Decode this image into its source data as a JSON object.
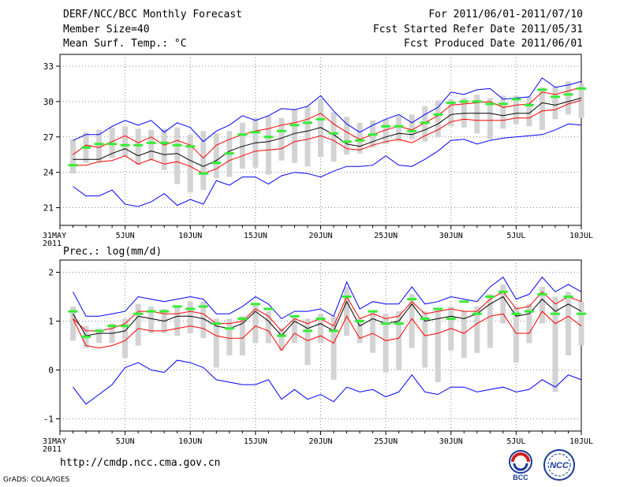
{
  "header": {
    "title": "DERF/NCC/BCC Monthly Forecast",
    "member_size": "Member Size=40",
    "variable1": "Mean Surf. Temp.: °C",
    "period": "For 2011/06/01-2011/07/10",
    "started": "Fcst Started Refer Date 2011/05/31",
    "produced": "Fcst Produced Date 2011/06/01"
  },
  "footer": {
    "url": "http://cmdp.ncc.cma.gov.cn",
    "grads": "GrADS: COLA/IGES"
  },
  "logos": {
    "bcc": "BCC",
    "ncc": "NCC"
  },
  "colors": {
    "blue": "#0000ff",
    "red": "#ff0000",
    "black": "#000000",
    "green": "#33ee33",
    "box": "#d3d3d3"
  },
  "chart_data": [
    {
      "type": "line",
      "name": "temperature",
      "title": "Mean Surf. Temp.: °C",
      "x_tick_labels": [
        "31MAY\n2011",
        "5JUN",
        "10JUN",
        "15JUN",
        "20JUN",
        "25JUN",
        "30JUN",
        "5JUL",
        "10JUL"
      ],
      "days": [
        "2011-05-31",
        "2011-06-01",
        "2011-06-02",
        "2011-06-03",
        "2011-06-04",
        "2011-06-05",
        "2011-06-06",
        "2011-06-07",
        "2011-06-08",
        "2011-06-09",
        "2011-06-10",
        "2011-06-11",
        "2011-06-12",
        "2011-06-13",
        "2011-06-14",
        "2011-06-15",
        "2011-06-16",
        "2011-06-17",
        "2011-06-18",
        "2011-06-19",
        "2011-06-20",
        "2011-06-21",
        "2011-06-22",
        "2011-06-23",
        "2011-06-24",
        "2011-06-25",
        "2011-06-26",
        "2011-06-27",
        "2011-06-28",
        "2011-06-29",
        "2011-06-30",
        "2011-07-01",
        "2011-07-02",
        "2011-07-03",
        "2011-07-04",
        "2011-07-05",
        "2011-07-06",
        "2011-07-07",
        "2011-07-08",
        "2011-07-09",
        "2011-07-10"
      ],
      "ylim": [
        19.5,
        34
      ],
      "yticks": [
        21,
        24,
        27,
        30,
        33
      ],
      "series": [
        {
          "name": "max",
          "color": "blue",
          "values": [
            null,
            22.8,
            22,
            22,
            22.5,
            21.3,
            21.1,
            21.5,
            22.2,
            21.2,
            21.7,
            21.3,
            23.3,
            22.9,
            23.6,
            23.6,
            23,
            23.7,
            24,
            23.9,
            23.6,
            24.1,
            24.5,
            24.5,
            24.6,
            25.4,
            24.6,
            24.5,
            25.1,
            25.8,
            26.7,
            26.8,
            26.4,
            26.7,
            26.9,
            27,
            27.1,
            27.2,
            27.6,
            28.1,
            28
          ]
        },
        {
          "name": "upper",
          "color": "blue",
          "values": [
            null,
            26.7,
            27.2,
            27.2,
            27.9,
            28.4,
            28,
            28.4,
            27.4,
            28.2,
            27.8,
            26.6,
            27.5,
            28,
            28.8,
            28.4,
            28.8,
            29.4,
            29.3,
            29.6,
            30.5,
            29.2,
            28.1,
            27.4,
            28,
            28.5,
            28.9,
            28.2,
            28.9,
            29.5,
            30.8,
            30.6,
            31,
            31.1,
            30.2,
            30.3,
            30.4,
            32,
            31.2,
            31.4,
            31.7
          ]
        },
        {
          "name": "red_hi",
          "color": "red",
          "values": [
            null,
            25.5,
            26.3,
            26.1,
            26.6,
            27.1,
            26.5,
            27,
            26.3,
            26.7,
            26.3,
            25.2,
            26.3,
            26.8,
            27.2,
            27.5,
            27.7,
            28,
            28.2,
            28.5,
            29,
            28.1,
            27.4,
            26.8,
            27.2,
            27.6,
            27.9,
            27.6,
            28.2,
            28.8,
            29.7,
            29.8,
            29.9,
            30,
            29.5,
            29.7,
            29.8,
            30.8,
            30.6,
            30.9,
            31.2
          ]
        },
        {
          "name": "mean",
          "color": "black",
          "values": [
            null,
            25.1,
            25.1,
            25.1,
            25.6,
            26,
            25.4,
            25.8,
            25.5,
            25.6,
            25,
            24.5,
            25,
            25.8,
            26.2,
            26.5,
            26.6,
            26.9,
            27.3,
            27.5,
            27.8,
            27.2,
            26.4,
            26.2,
            26.6,
            27,
            27.3,
            27.2,
            27.6,
            28.1,
            28.9,
            29,
            29,
            29,
            28.8,
            29,
            29,
            29.9,
            29.7,
            30,
            30.3
          ]
        },
        {
          "name": "red_lo",
          "color": "red",
          "values": [
            null,
            24.6,
            24.6,
            24.9,
            25,
            25.4,
            24.7,
            25.1,
            24.7,
            24.9,
            24.5,
            23.9,
            24.3,
            25,
            25.4,
            25.8,
            25.9,
            26,
            26.6,
            26.8,
            27.1,
            26.7,
            26,
            25.9,
            26.3,
            26.6,
            26.8,
            26.5,
            27.1,
            27.6,
            28.3,
            28.5,
            28.4,
            28.4,
            28.4,
            28.6,
            28.6,
            29.2,
            29.3,
            29.8,
            30.1
          ]
        },
        {
          "name": "obs",
          "color": "green",
          "type": "dash",
          "values": [
            null,
            24.6,
            26.1,
            26.4,
            26.4,
            26.3,
            26.3,
            26.5,
            26.5,
            26.3,
            26.2,
            23.9,
            24.8,
            25.6,
            27.2,
            27.4,
            27,
            27.5,
            28,
            28.2,
            28.5,
            27.3,
            26.6,
            26.7,
            27.2,
            27.9,
            27.9,
            27.5,
            28.2,
            28.9,
            29.9,
            30,
            30,
            29.8,
            29.8,
            30.2,
            29.7,
            31,
            30.4,
            30.6,
            31.1
          ]
        }
      ],
      "boxes": [
        [
          null,
          null
        ],
        [
          23.9,
          26.8
        ],
        [
          24.8,
          27.4
        ],
        [
          24.8,
          27.6
        ],
        [
          25.2,
          27.8
        ],
        [
          25.3,
          27.9
        ],
        [
          24.6,
          27.7
        ],
        [
          25,
          27.6
        ],
        [
          24.2,
          27.7
        ],
        [
          23,
          27.8
        ],
        [
          22.3,
          27.2
        ],
        [
          22.5,
          27.5
        ],
        [
          23.5,
          27.3
        ],
        [
          23.6,
          27.5
        ],
        [
          24.3,
          28.2
        ],
        [
          24.4,
          28.6
        ],
        [
          23.8,
          28.8
        ],
        [
          25,
          28.6
        ],
        [
          24.8,
          29.4
        ],
        [
          24.5,
          29.6
        ],
        [
          25.3,
          30.2
        ],
        [
          24.9,
          29.1
        ],
        [
          25.5,
          28.7
        ],
        [
          25.6,
          28.2
        ],
        [
          26.1,
          28.4
        ],
        [
          26.4,
          28.5
        ],
        [
          26.6,
          28.8
        ],
        [
          26.8,
          28.9
        ],
        [
          26.6,
          29.6
        ],
        [
          27,
          30.1
        ],
        [
          27.9,
          30.2
        ],
        [
          27.8,
          30.3
        ],
        [
          27.3,
          30.6
        ],
        [
          26.8,
          30.3
        ],
        [
          27.7,
          30.5
        ],
        [
          28.1,
          30.5
        ],
        [
          27.9,
          30.4
        ],
        [
          27.6,
          31.2
        ],
        [
          28.5,
          31.3
        ],
        [
          28.9,
          31.7
        ],
        [
          28.6,
          31.5
        ]
      ]
    },
    {
      "type": "line",
      "name": "precipitation",
      "title": "Prec.: log(mm/d)",
      "x_tick_labels": [
        "31MAY\n2011",
        "5JUN",
        "10JUN",
        "15JUN",
        "20JUN",
        "25JUN",
        "30JUN",
        "5JUL",
        "10JUL"
      ],
      "ylim": [
        -1.25,
        2.25
      ],
      "yticks": [
        -1,
        0,
        1,
        2
      ],
      "series": [
        {
          "name": "min",
          "color": "blue",
          "values": [
            null,
            -0.35,
            -0.7,
            -0.5,
            -0.3,
            0.05,
            0.15,
            0,
            -0.05,
            0.2,
            0.15,
            0.05,
            -0.2,
            -0.25,
            -0.3,
            -0.3,
            -0.2,
            -0.6,
            -0.4,
            -0.6,
            -0.5,
            -0.65,
            -0.35,
            -0.45,
            -0.4,
            -0.55,
            -0.45,
            -0.1,
            -0.45,
            -0.5,
            -0.35,
            -0.35,
            -0.45,
            -0.4,
            -0.35,
            -0.45,
            -0.4,
            -0.2,
            -0.35,
            -0.1,
            -0.2
          ]
        },
        {
          "name": "upper",
          "color": "blue",
          "values": [
            null,
            1.6,
            1.1,
            1.1,
            1.15,
            1.2,
            1.5,
            1.45,
            1.4,
            1.45,
            1.5,
            1.45,
            1.15,
            1.15,
            1.3,
            1.5,
            1.35,
            1.05,
            1.2,
            1.2,
            1.25,
            1.1,
            1.8,
            1.25,
            1.4,
            1.35,
            1.35,
            1.7,
            1.35,
            1.4,
            1.5,
            1.45,
            1.4,
            1.7,
            1.9,
            1.45,
            1.55,
            1.9,
            1.6,
            1.75,
            1.6
          ]
        },
        {
          "name": "red_hi",
          "color": "red",
          "values": [
            null,
            1.05,
            0.8,
            0.8,
            0.85,
            0.95,
            1.2,
            1.2,
            1.15,
            1.15,
            1.2,
            1.15,
            0.95,
            0.95,
            1,
            1.25,
            1.1,
            0.8,
            1.05,
            0.95,
            1.05,
            0.9,
            1.5,
            1.05,
            1.15,
            1.05,
            1.1,
            1.4,
            1.15,
            1.2,
            1.25,
            1.2,
            1.2,
            1.45,
            1.6,
            1.25,
            1.3,
            1.6,
            1.35,
            1.5,
            1.4
          ]
        },
        {
          "name": "mean",
          "color": "black",
          "values": [
            null,
            1.15,
            0.7,
            0.75,
            0.75,
            0.8,
            1.1,
            1.05,
            1,
            1.1,
            1.1,
            1.05,
            0.9,
            0.85,
            0.95,
            1.2,
            1,
            0.7,
            1,
            0.85,
            0.95,
            0.8,
            1.4,
            0.9,
            1.05,
            0.95,
            1,
            1.35,
            1,
            1.05,
            1.1,
            1.05,
            1.15,
            1.35,
            1.5,
            1.1,
            1.15,
            1.45,
            1.2,
            1.35,
            1.2
          ]
        },
        {
          "name": "red_lo",
          "color": "red",
          "values": [
            null,
            1.05,
            0.5,
            0.45,
            0.5,
            0.6,
            0.85,
            0.8,
            0.8,
            0.85,
            0.9,
            0.85,
            0.7,
            0.65,
            0.65,
            0.9,
            0.8,
            0.4,
            0.75,
            0.6,
            0.7,
            0.55,
            1.1,
            0.65,
            0.75,
            0.6,
            0.65,
            1.05,
            0.7,
            0.75,
            0.85,
            0.75,
            0.95,
            1.1,
            1.15,
            0.75,
            0.75,
            1.2,
            0.95,
            1.1,
            0.9
          ]
        },
        {
          "name": "obs",
          "color": "green",
          "type": "dash",
          "values": [
            null,
            1.2,
            0.68,
            0.8,
            0.9,
            0.9,
            1.15,
            1.2,
            1.2,
            1.3,
            1.25,
            1.3,
            0.95,
            0.85,
            1.05,
            1.35,
            1.25,
            0.7,
            1.1,
            0.8,
            1.05,
            0.8,
            1.5,
            1,
            1.2,
            0.95,
            0.95,
            1.45,
            1.05,
            1.25,
            1.05,
            1.4,
            1.15,
            1.5,
            1.6,
            1.15,
            1.2,
            1.55,
            1.15,
            1.5,
            1.15
          ]
        }
      ],
      "boxes": [
        [
          null,
          null
        ],
        [
          0.6,
          1.3
        ],
        [
          0.45,
          0.9
        ],
        [
          0.55,
          0.85
        ],
        [
          0.55,
          0.95
        ],
        [
          0.25,
          1.05
        ],
        [
          0.5,
          1.35
        ],
        [
          0.75,
          1.3
        ],
        [
          0.75,
          1.25
        ],
        [
          0.7,
          1.3
        ],
        [
          0.75,
          1.4
        ],
        [
          0.65,
          1.4
        ],
        [
          0.05,
          1.05
        ],
        [
          0.3,
          1.05
        ],
        [
          0.3,
          1.1
        ],
        [
          0.55,
          1.35
        ],
        [
          0.55,
          1.2
        ],
        [
          0.4,
          0.85
        ],
        [
          0.55,
          1.1
        ],
        [
          0.1,
          1.05
        ],
        [
          0.55,
          1.15
        ],
        [
          -0.2,
          1.1
        ],
        [
          0.7,
          1.7
        ],
        [
          0.55,
          1.05
        ],
        [
          0.35,
          1.2
        ],
        [
          -0.05,
          1.15
        ],
        [
          0,
          1.2
        ],
        [
          0.45,
          1.55
        ],
        [
          0.05,
          1.2
        ],
        [
          -0.25,
          1.25
        ],
        [
          0.4,
          1.3
        ],
        [
          0.25,
          1.2
        ],
        [
          0.35,
          1.3
        ],
        [
          0.45,
          1.55
        ],
        [
          0.95,
          1.75
        ],
        [
          0.15,
          1.3
        ],
        [
          0.55,
          1.35
        ],
        [
          0.95,
          1.7
        ],
        [
          -0.45,
          1.5
        ],
        [
          0.3,
          1.6
        ],
        [
          0.5,
          1.4
        ]
      ]
    }
  ]
}
